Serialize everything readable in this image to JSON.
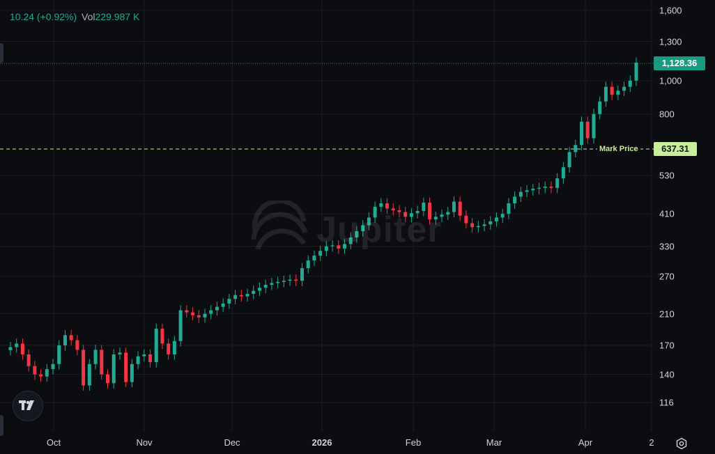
{
  "legend": {
    "price_change": "10.24 (+0.92%)",
    "vol_label": "Vol",
    "vol_value": "229.987 K"
  },
  "price_tag": "1,128.36",
  "mark_price": {
    "label": "Mark Price",
    "value": "637.31"
  },
  "colors": {
    "up": "#22ab94",
    "down": "#f23645",
    "background": "#0c0d10",
    "mark_line": "#c8ee9b",
    "price_tag": "#1a9b81"
  },
  "icons": {
    "logo": "tradingview-logo-icon",
    "settings": "gear-icon",
    "watermark": "jupiter-logo-icon"
  },
  "watermark_text": "Jupiter",
  "chart_data": {
    "type": "candlestick",
    "y_scale": "log",
    "y_ticks": [
      {
        "value": 1600,
        "label": "1,600"
      },
      {
        "value": 1300,
        "label": "1,300"
      },
      {
        "value": 1000,
        "label": "1,000"
      },
      {
        "value": 800,
        "label": "800"
      },
      {
        "value": 530,
        "label": "530"
      },
      {
        "value": 410,
        "label": "410"
      },
      {
        "value": 330,
        "label": "330"
      },
      {
        "value": 270,
        "label": "270"
      },
      {
        "value": 210,
        "label": "210"
      },
      {
        "value": 170,
        "label": "170"
      },
      {
        "value": 140,
        "label": "140"
      },
      {
        "value": 116,
        "label": "116"
      }
    ],
    "x_ticks": [
      {
        "label": "Oct",
        "bold": false
      },
      {
        "label": "Nov",
        "bold": false
      },
      {
        "label": "Dec",
        "bold": false
      },
      {
        "label": "2026",
        "bold": true
      },
      {
        "label": "Feb",
        "bold": false
      },
      {
        "label": "Mar",
        "bold": false
      },
      {
        "label": "Apr",
        "bold": false
      },
      {
        "label": "2",
        "bold": false
      }
    ],
    "last_price": 1128.36,
    "mark_price": 637.31,
    "approx_close_series": [
      168,
      172,
      160,
      148,
      140,
      138,
      145,
      150,
      170,
      182,
      176,
      165,
      130,
      150,
      165,
      140,
      132,
      160,
      162,
      133,
      150,
      158,
      160,
      152,
      190,
      172,
      160,
      175,
      215,
      212,
      208,
      205,
      210,
      215,
      220,
      225,
      232,
      238,
      236,
      240,
      245,
      250,
      255,
      258,
      260,
      262,
      264,
      262,
      285,
      300,
      310,
      320,
      330,
      332,
      325,
      335,
      350,
      365,
      380,
      400,
      430,
      440,
      425,
      420,
      415,
      402,
      412,
      418,
      442,
      395,
      402,
      408,
      415,
      445,
      405,
      385,
      375,
      378,
      382,
      390,
      400,
      410,
      440,
      460,
      475,
      480,
      485,
      488,
      492,
      488,
      520,
      560,
      620,
      650,
      760,
      680,
      800,
      870,
      960,
      910,
      935,
      960,
      1000,
      1128
    ]
  }
}
